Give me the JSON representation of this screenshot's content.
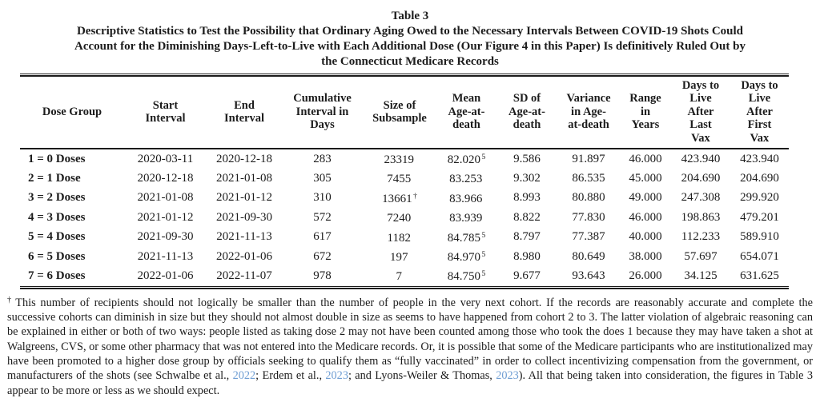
{
  "colors": {
    "link_blue": "#6e9dd3",
    "text": "#1c1c1c"
  },
  "title": {
    "table_number": "Table 3",
    "heading": "Descriptive Statistics to Test the Possibility that Ordinary Aging Owed to the Necessary Intervals Between COVID-19 Shots Could\nAccount for the Diminishing Days-Left-to-Live with Each Additional Dose (Our Figure 4 in this Paper) Is definitively Ruled Out by\nthe Connecticut Medicare Records"
  },
  "table": {
    "columns": [
      {
        "label": "Dose Group"
      },
      {
        "label": "Start\nInterval"
      },
      {
        "label": "End\nInterval"
      },
      {
        "label": "Cumulative\nInterval in\nDays"
      },
      {
        "label": "Size of\nSubsample"
      },
      {
        "label": "Mean\nAge-at-\ndeath"
      },
      {
        "label": "SD of\nAge-at-\ndeath"
      },
      {
        "label": "Variance\nin Age-\nat-death"
      },
      {
        "label": "Range\nin\nYears"
      },
      {
        "label": "Days to\nLive\nAfter\nLast\nVax"
      },
      {
        "label": "Days to\nLive\nAfter\nFirst\nVax"
      }
    ],
    "rows": [
      {
        "dose_group": "1 = 0 Doses",
        "start_interval": "2020-03-11",
        "end_interval": "2020-12-18",
        "cumulative_days": "283",
        "subsample_size": "23319",
        "subsample_mark": "",
        "mean_age": "82.020",
        "mean_age_sup": "5",
        "sd_age": "9.586",
        "variance_age": "91.897",
        "range_years": "46.000",
        "days_after_last_vax": "423.940",
        "days_after_first_vax": "423.940"
      },
      {
        "dose_group": "2 = 1 Dose",
        "start_interval": "2020-12-18",
        "end_interval": "2021-01-08",
        "cumulative_days": "305",
        "subsample_size": "7455",
        "subsample_mark": "",
        "mean_age": "83.253",
        "mean_age_sup": "",
        "sd_age": "9.302",
        "variance_age": "86.535",
        "range_years": "45.000",
        "days_after_last_vax": "204.690",
        "days_after_first_vax": "204.690"
      },
      {
        "dose_group": "3 = 2 Doses",
        "start_interval": "2021-01-08",
        "end_interval": "2021-01-12",
        "cumulative_days": "310",
        "subsample_size": "13661",
        "subsample_mark": "†",
        "mean_age": "83.966",
        "mean_age_sup": "",
        "sd_age": "8.993",
        "variance_age": "80.880",
        "range_years": "49.000",
        "days_after_last_vax": "247.308",
        "days_after_first_vax": "299.920"
      },
      {
        "dose_group": "4 = 3 Doses",
        "start_interval": "2021-01-12",
        "end_interval": "2021-09-30",
        "cumulative_days": "572",
        "subsample_size": "7240",
        "subsample_mark": "",
        "mean_age": "83.939",
        "mean_age_sup": "",
        "sd_age": "8.822",
        "variance_age": "77.830",
        "range_years": "46.000",
        "days_after_last_vax": "198.863",
        "days_after_first_vax": "479.201"
      },
      {
        "dose_group": "5 = 4 Doses",
        "start_interval": "2021-09-30",
        "end_interval": "2021-11-13",
        "cumulative_days": "617",
        "subsample_size": "1182",
        "subsample_mark": "",
        "mean_age": "84.785",
        "mean_age_sup": "5",
        "sd_age": "8.797",
        "variance_age": "77.387",
        "range_years": "40.000",
        "days_after_last_vax": "112.233",
        "days_after_first_vax": "589.910"
      },
      {
        "dose_group": "6 = 5 Doses",
        "start_interval": "2021-11-13",
        "end_interval": "2022-01-06",
        "cumulative_days": "672",
        "subsample_size": "197",
        "subsample_mark": "",
        "mean_age": "84.970",
        "mean_age_sup": "5",
        "sd_age": "8.980",
        "variance_age": "80.649",
        "range_years": "38.000",
        "days_after_last_vax": "57.697",
        "days_after_first_vax": "654.071"
      },
      {
        "dose_group": "7 = 6 Doses",
        "start_interval": "2022-01-06",
        "end_interval": "2022-11-07",
        "cumulative_days": "978",
        "subsample_size": "7",
        "subsample_mark": "",
        "mean_age": "84.750",
        "mean_age_sup": "5",
        "sd_age": "9.677",
        "variance_age": "93.643",
        "range_years": "26.000",
        "days_after_last_vax": "34.125",
        "days_after_first_vax": "631.625"
      }
    ]
  },
  "footnote": {
    "dagger": "†",
    "part1": "This number of recipients should not logically be smaller than the number of people in the very next cohort. If the records are reasonably accurate and complete the successive cohorts can diminish in size but they should not almost double in size as seems to have happened from cohort 2 to 3. The latter violation of algebraic reasoning can be explained in either or both of two ways: people listed as taking dose 2 may not have been counted among those who took the does 1 because they may have taken a shot at Walgreens, CVS, or some other pharmacy that was not entered into the Medicare records. Or, it is possible that some of the Medicare participants who are institutionalized may have been promoted to a higher dose group by officials seeking to qualify them as “fully vaccinated” in order to collect incentivizing compensation from the government, or manufacturers of the shots (see Schwalbe et al., ",
    "link1": "2022",
    "part2": "; Erdem et al., ",
    "link2": "2023",
    "part3": "; and Lyons-Weiler & Thomas, ",
    "link3": "2023",
    "part4": "). All that being taken into consideration, the figures in Table 3 appear to be more or less as we should expect."
  }
}
